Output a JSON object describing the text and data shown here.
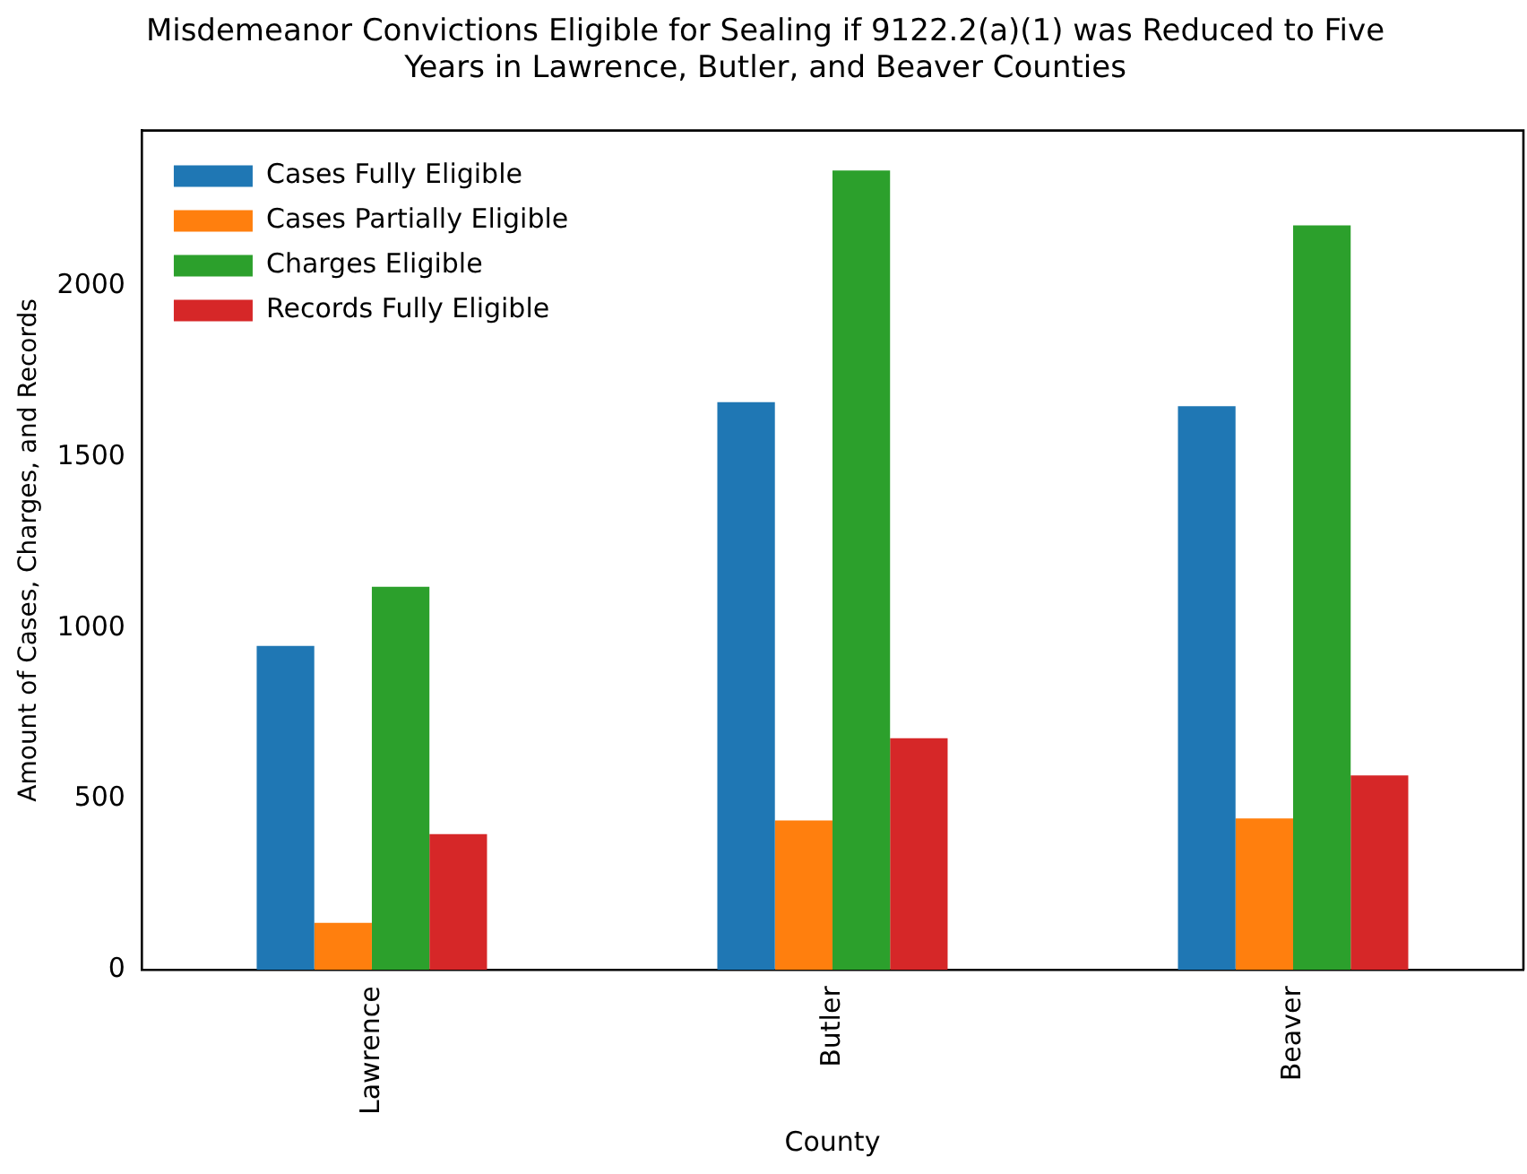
{
  "chart_data": {
    "type": "bar",
    "title": "Misdemeanor Convictions Eligible for Sealing if 9122.2(a)(1) was Reduced to Five Years in Lawrence, Butler, and Beaver Counties",
    "xlabel": "County",
    "ylabel": "Amount of Cases, Charges, and Records",
    "categories": [
      "Lawrence",
      "Butler",
      "Beaver"
    ],
    "series": [
      {
        "name": "Cases Fully Eligible",
        "color": "#1f77b4",
        "values": [
          948,
          1661,
          1649
        ]
      },
      {
        "name": "Cases Partially Eligible",
        "color": "#ff7f0e",
        "values": [
          138,
          437,
          443
        ]
      },
      {
        "name": "Charges Eligible",
        "color": "#2ca02c",
        "values": [
          1121,
          2339,
          2178
        ]
      },
      {
        "name": "Records Fully Eligible",
        "color": "#d62728",
        "values": [
          397,
          678,
          569
        ]
      }
    ],
    "ylim": [
      0,
      2456
    ],
    "yticks": [
      0,
      500,
      1000,
      1500,
      2000
    ],
    "grid": false,
    "legend": "top left"
  }
}
